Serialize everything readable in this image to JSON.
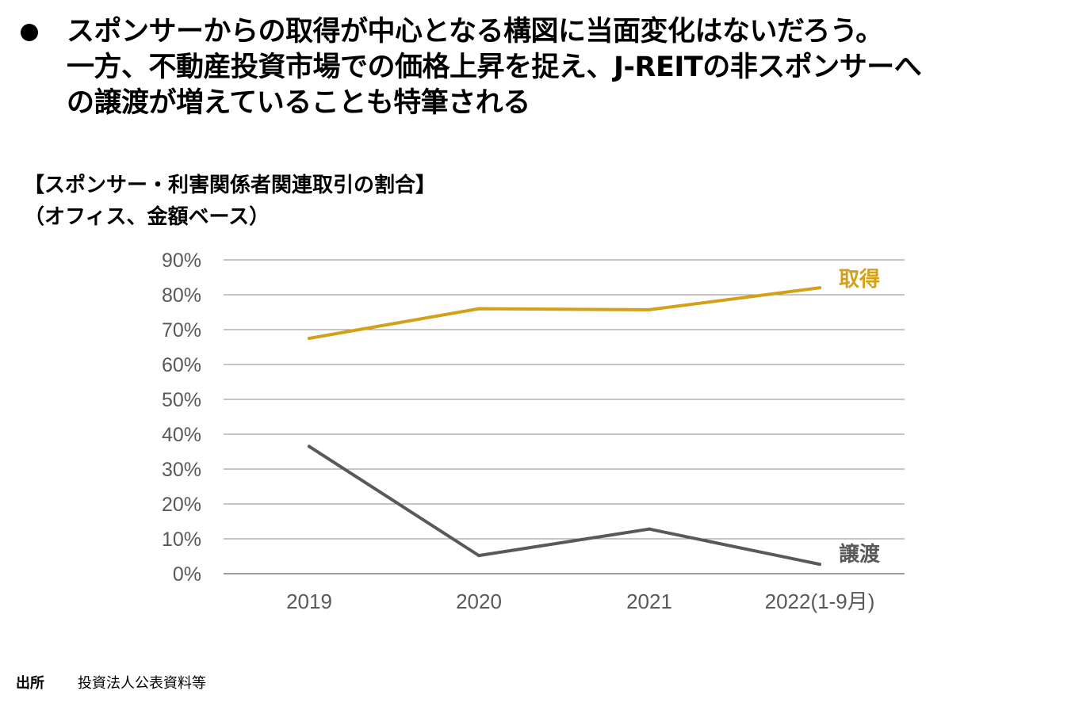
{
  "headline": {
    "line1": "スポンサーからの取得が中心となる構図に当面変化はないだろう。",
    "line2": "一方、不動産投資市場での価格上昇を捉え、J-REITの非スポンサーへ",
    "line3": "の譲渡が増えていることも特筆される"
  },
  "chart_title": {
    "line1": "【スポンサー・利害関係者関連取引の割合】",
    "line2": "（オフィス、金額ベース）"
  },
  "chart_data": {
    "type": "line",
    "categories": [
      "2019",
      "2020",
      "2021",
      "2022(1-9月)"
    ],
    "series": [
      {
        "name": "取得",
        "values": [
          67.5,
          76,
          75.7,
          82
        ],
        "color": "#D4A017"
      },
      {
        "name": "譲渡",
        "values": [
          36.5,
          5.2,
          12.8,
          2.7
        ],
        "color": "#595959"
      }
    ],
    "yticks": [
      "0%",
      "10%",
      "20%",
      "30%",
      "40%",
      "50%",
      "60%",
      "70%",
      "80%",
      "90%"
    ],
    "ylim": [
      0,
      90
    ],
    "ytick_step": 10,
    "grid": true,
    "legend": "inline-end-labels"
  },
  "footer": {
    "source_label": "出所",
    "source_text": "投資法人公表資料等"
  }
}
